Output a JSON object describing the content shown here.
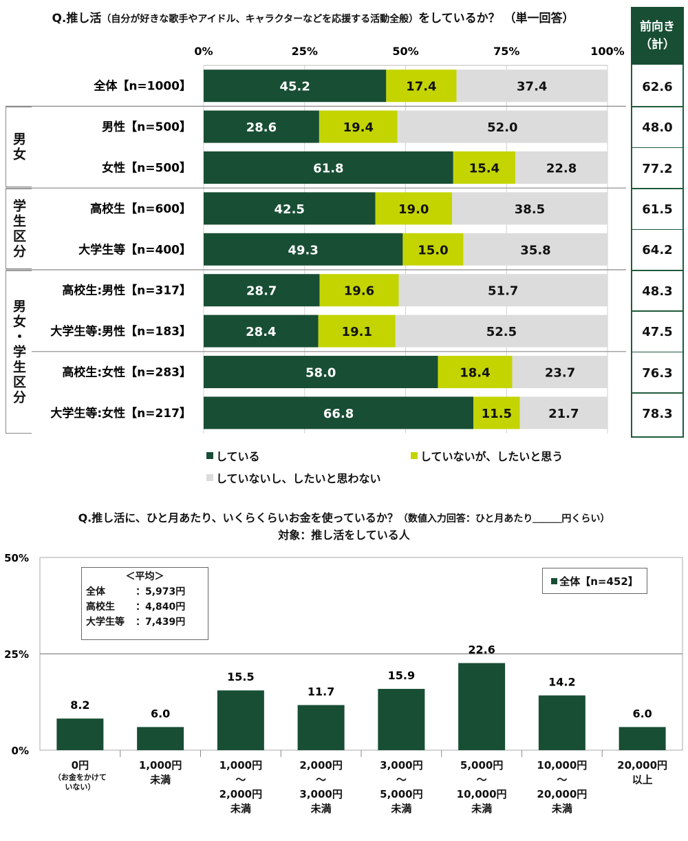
{
  "chart_data": [
    {
      "type": "bar",
      "orientation": "horizontal-stacked-100",
      "title": "Q.推し活",
      "title_note": "（自分が好きな歌手やアイドル、キャラクターなどを応援する活動全般）",
      "title_tail": "をしているか？ （単一回答）",
      "x_ticks": [
        "0%",
        "25%",
        "50%",
        "75%",
        "100%"
      ],
      "xlim": [
        0,
        100
      ],
      "categories": [
        "全体【n=1000】",
        "男性【n=500】",
        "女性【n=500】",
        "高校生【n=600】",
        "大学生等【n=400】",
        "高校生:男性【n=317】",
        "大学生等:男性【n=183】",
        "高校生:女性【n=283】",
        "大学生等:女性【n=217】"
      ],
      "series": [
        {
          "name": "している",
          "color": "#184e34",
          "text_color": "#ffffff",
          "values": [
            45.2,
            28.6,
            61.8,
            42.5,
            49.3,
            28.7,
            28.4,
            58.0,
            66.8
          ]
        },
        {
          "name": "していないが、したいと思う",
          "color": "#c3d400",
          "text_color": "#111111",
          "values": [
            17.4,
            19.4,
            15.4,
            19.0,
            15.0,
            19.6,
            19.1,
            18.4,
            11.5
          ]
        },
        {
          "name": "していないし、したいと思わない",
          "color": "#dcdcdc",
          "text_color": "#111111",
          "values": [
            37.4,
            52.0,
            22.8,
            38.5,
            35.8,
            51.7,
            52.5,
            23.7,
            21.7
          ]
        }
      ],
      "groups": [
        {
          "label": "男女",
          "rows": [
            1,
            2
          ]
        },
        {
          "label": "学生区分",
          "rows": [
            3,
            4
          ]
        },
        {
          "label": "男女・学生区分",
          "rows": [
            5,
            6,
            7,
            8
          ]
        }
      ],
      "forward": {
        "header_line1": "前向き",
        "header_line2": "（計）",
        "values": [
          "62.6",
          "48.0",
          "77.2",
          "61.5",
          "64.2",
          "48.3",
          "47.5",
          "76.3",
          "78.3"
        ]
      }
    },
    {
      "type": "bar",
      "title": "Q.推し活に、ひと月あたり、いくらくらいお金を使っているか？",
      "title_note": "（数値入力回答：ひと月あたり＿＿＿円くらい）",
      "subtitle": "対象：推し活をしている人",
      "series": [
        {
          "name": "全体【n=452】",
          "color": "#184e34",
          "values": [
            8.2,
            6.0,
            15.5,
            11.7,
            15.9,
            22.6,
            14.2,
            6.0
          ]
        }
      ],
      "categories": [
        [
          "0円"
        ],
        [
          "1,000円",
          "未満"
        ],
        [
          "1,000円",
          "～",
          "2,000円",
          "未満"
        ],
        [
          "2,000円",
          "～",
          "3,000円",
          "未満"
        ],
        [
          "3,000円",
          "～",
          "5,000円",
          "未満"
        ],
        [
          "5,000円",
          "～",
          "10,000円",
          "未満"
        ],
        [
          "10,000円",
          "～",
          "20,000円",
          "未満"
        ],
        [
          "20,000円",
          "以上"
        ]
      ],
      "category_note": [
        "（お金をかけて",
        "いない）"
      ],
      "y_ticks": [
        "0%",
        "25%",
        "50%"
      ],
      "ylim": [
        0,
        50
      ],
      "average_box": {
        "title": "＜平均＞",
        "rows": [
          {
            "label": "全体",
            "value": "：5,973円"
          },
          {
            "label": "高校生",
            "value": "：4,840円"
          },
          {
            "label": "大学生等",
            "value": "：7,439円"
          }
        ]
      },
      "legend_label": "全体【n=452】"
    }
  ]
}
